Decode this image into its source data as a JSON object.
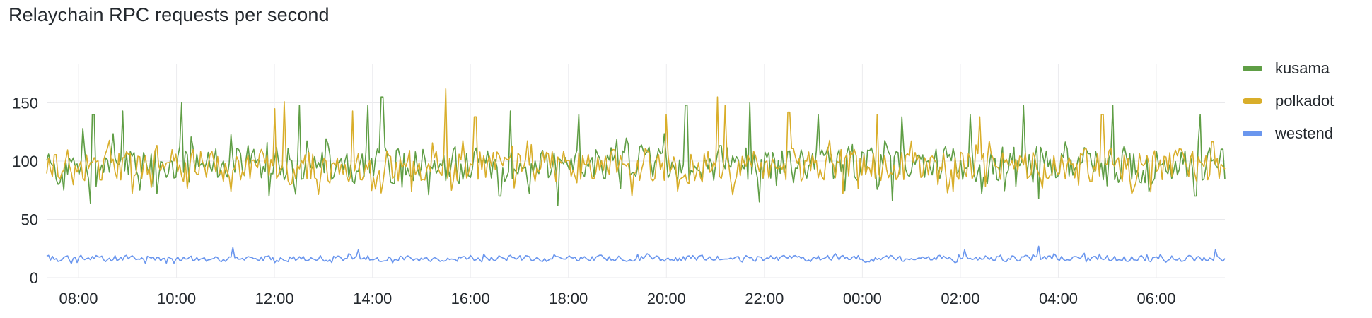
{
  "panel": {
    "title": "Relaychain RPC requests per second"
  },
  "chart_data": {
    "type": "line",
    "title": "Relaychain RPC requests per second",
    "xlabel": "",
    "ylabel": "",
    "ylim": [
      0,
      180
    ],
    "yticks": [
      0,
      50,
      100,
      150
    ],
    "xtick_labels": [
      "08:00",
      "10:00",
      "12:00",
      "14:00",
      "16:00",
      "18:00",
      "20:00",
      "22:00",
      "00:00",
      "02:00",
      "04:00",
      "06:00"
    ],
    "x_range_hours": [
      -0.65,
      23.4
    ],
    "grid": true,
    "legend_position": "right",
    "series": [
      {
        "name": "kusama",
        "color": "#5f9e45",
        "mean": 97,
        "amplitude": 18,
        "peaks": [
          [
            0.1,
            128
          ],
          [
            0.3,
            140
          ],
          [
            0.9,
            143
          ],
          [
            2.1,
            150
          ],
          [
            4.5,
            148
          ],
          [
            5.9,
            148
          ],
          [
            6.2,
            155
          ],
          [
            8.8,
            143
          ],
          [
            10.2,
            140
          ],
          [
            12.4,
            148
          ],
          [
            13.7,
            150
          ],
          [
            15.1,
            140
          ],
          [
            16.8,
            138
          ],
          [
            18.2,
            140
          ],
          [
            19.3,
            148
          ],
          [
            21.1,
            148
          ],
          [
            22.9,
            140
          ]
        ],
        "dips": [
          [
            0.25,
            64
          ],
          [
            1.6,
            72
          ],
          [
            3.9,
            70
          ],
          [
            8.6,
            70
          ],
          [
            9.8,
            62
          ],
          [
            13.9,
            65
          ],
          [
            16.6,
            66
          ],
          [
            19.6,
            68
          ],
          [
            22.8,
            70
          ]
        ]
      },
      {
        "name": "polkadot",
        "color": "#d9ae2a",
        "mean": 96,
        "amplitude": 16,
        "peaks": [
          [
            4.0,
            145
          ],
          [
            4.2,
            151
          ],
          [
            5.6,
            143
          ],
          [
            7.5,
            162
          ],
          [
            8.1,
            138
          ],
          [
            12.0,
            140
          ],
          [
            13.05,
            155
          ],
          [
            13.2,
            148
          ],
          [
            14.5,
            142
          ],
          [
            16.3,
            140
          ],
          [
            18.4,
            138
          ],
          [
            20.9,
            140
          ]
        ],
        "dips": [
          [
            1.1,
            72
          ],
          [
            3.1,
            74
          ],
          [
            6.8,
            74
          ],
          [
            11.3,
            70
          ],
          [
            15.6,
            72
          ],
          [
            21.5,
            72
          ]
        ]
      },
      {
        "name": "westend",
        "color": "#6a96ee",
        "mean": 16.5,
        "amplitude": 3,
        "peaks": [
          [
            3.15,
            26
          ],
          [
            5.7,
            24
          ],
          [
            18.1,
            24
          ],
          [
            19.6,
            27
          ],
          [
            23.2,
            24
          ]
        ],
        "dips": []
      }
    ]
  }
}
